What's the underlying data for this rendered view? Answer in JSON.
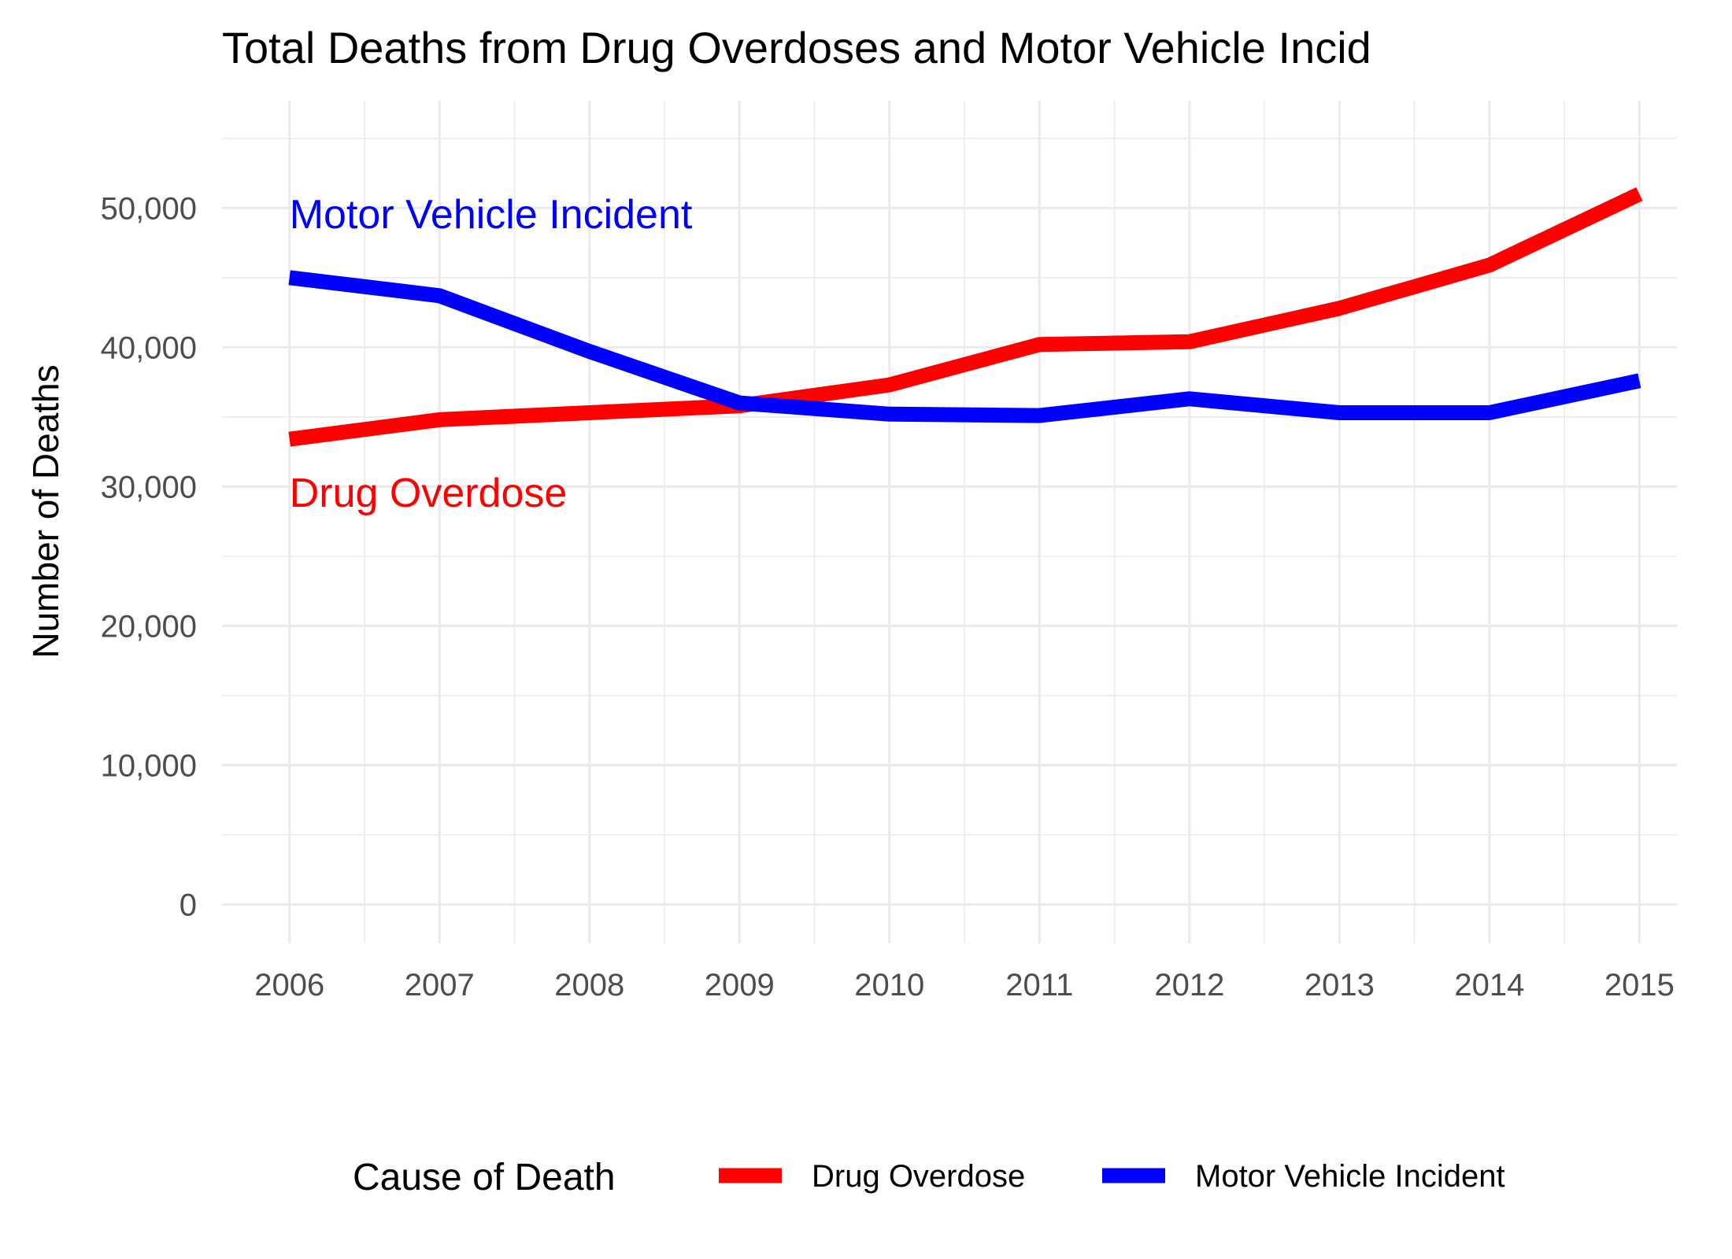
{
  "chart_data": {
    "type": "line",
    "title": "Total Deaths from Drug Overdoses and Motor Vehicle Incid",
    "xlabel": "",
    "ylabel": "Number of Deaths",
    "x": [
      2006,
      2007,
      2008,
      2009,
      2010,
      2011,
      2012,
      2013,
      2014,
      2015
    ],
    "x_tick_labels": [
      "2006",
      "2007",
      "2008",
      "2009",
      "2010",
      "2011",
      "2012",
      "2013",
      "2014",
      "2015"
    ],
    "y_ticks": [
      0,
      10000,
      20000,
      30000,
      40000,
      50000
    ],
    "y_tick_labels": [
      "0",
      "10,000",
      "20,000",
      "30,000",
      "40,000",
      "50,000"
    ],
    "xlim": [
      2005.55,
      2015.25
    ],
    "ylim": [
      -2800,
      57700
    ],
    "grid": true,
    "legend_position": "bottom",
    "legend_title": "Cause of Death",
    "series": [
      {
        "name": "Drug Overdose",
        "color": "#FF0000",
        "values": [
          33400,
          34800,
          35300,
          35800,
          37300,
          40200,
          40400,
          42800,
          45900,
          51000
        ]
      },
      {
        "name": "Motor Vehicle Incident",
        "color": "#0000FF",
        "values": [
          45000,
          43700,
          39700,
          36000,
          35200,
          35100,
          36300,
          35300,
          35300,
          37600
        ]
      }
    ],
    "annotations": [
      {
        "text": "Motor Vehicle Incident",
        "color": "#0000FF",
        "x": 2006,
        "y": 49500
      },
      {
        "text": "Drug Overdose",
        "color": "#FF0000",
        "x": 2006,
        "y": 29500
      }
    ]
  }
}
